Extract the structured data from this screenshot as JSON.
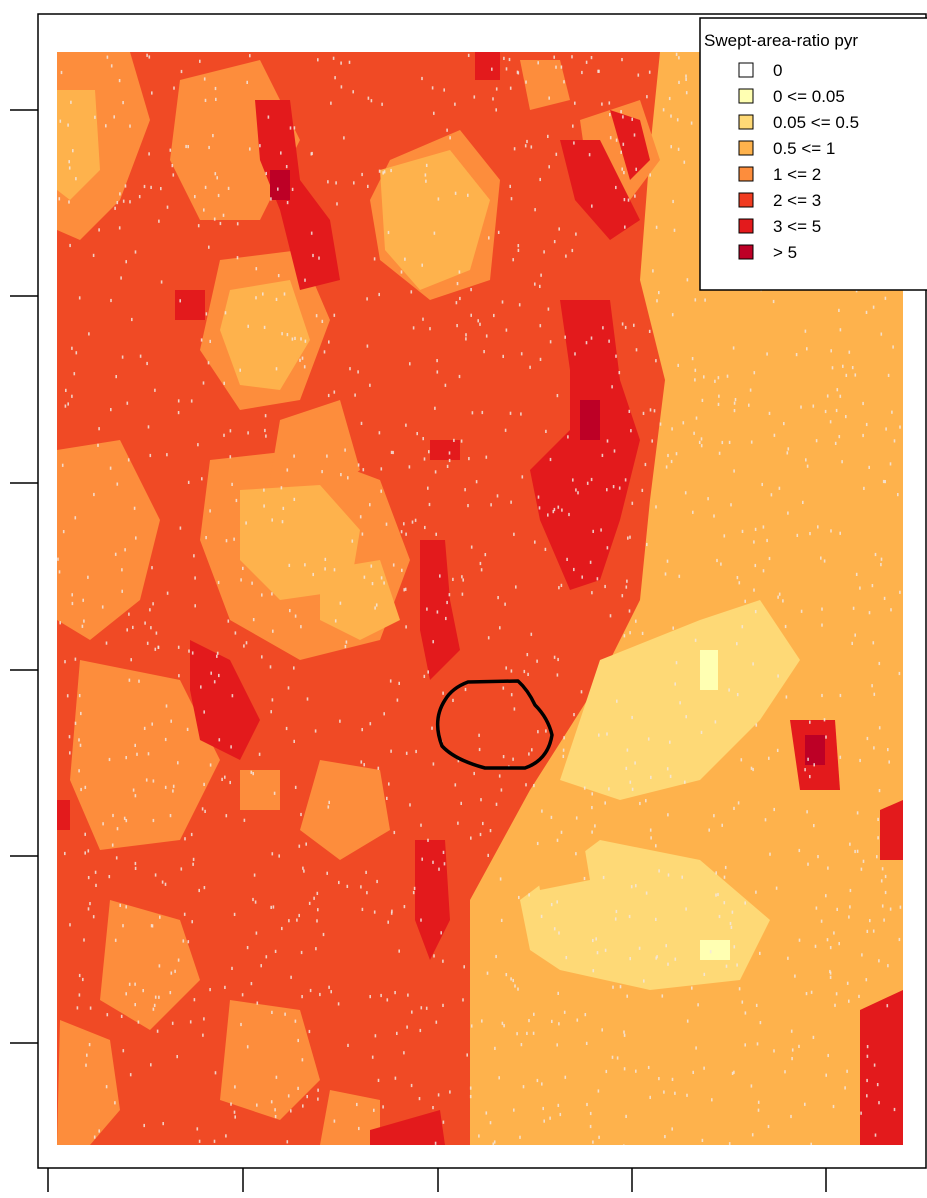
{
  "legend": {
    "title": "Swept-area-ratio pyr",
    "items": [
      {
        "label": "0",
        "color": "#ffffff"
      },
      {
        "label": "0 <= 0.05",
        "color": "#ffffb2"
      },
      {
        "label": "0.05 <= 0.5",
        "color": "#fed976"
      },
      {
        "label": "0.5 <= 1",
        "color": "#feb24c"
      },
      {
        "label": "1 <= 2",
        "color": "#fd8d3c"
      },
      {
        "label": "2 <= 3",
        "color": "#f03b20"
      },
      {
        "label": "3 <= 5",
        "color": "#e31a1c"
      },
      {
        "label": "> 5",
        "color": "#bd0026"
      }
    ]
  },
  "map": {
    "background_class": "2 <= 3",
    "outline_color": "#000000",
    "speckle_color": "#f2e6e0"
  }
}
